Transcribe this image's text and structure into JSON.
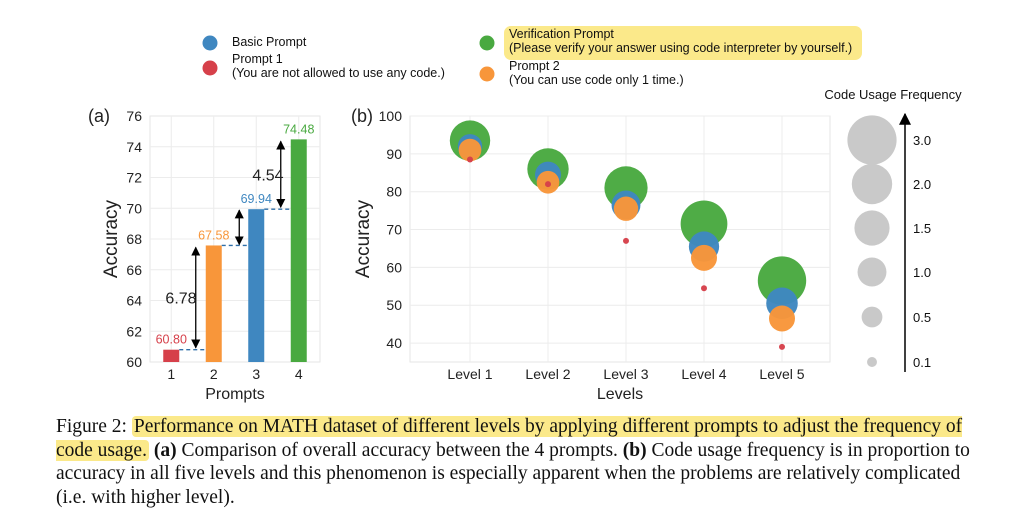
{
  "legend": {
    "items": [
      {
        "label": "Basic Prompt",
        "sub": "",
        "color": "#3f87c0"
      },
      {
        "label": "Prompt 1",
        "sub": "(You are not allowed to use any code.)",
        "color": "#d6404a"
      },
      {
        "label": "Verification Prompt",
        "sub": "(Please verify your answer using code interpreter by yourself.)",
        "color": "#49a940",
        "highlight": true
      },
      {
        "label": "Prompt 2",
        "sub": "(You can use code only 1 time.)",
        "color": "#f8963a"
      }
    ]
  },
  "colors": {
    "basic": "#3f87c0",
    "p1": "#d6404a",
    "verif": "#49a940",
    "p2": "#f8963a",
    "highlight": "#fbe98a",
    "size_legend": "#c9c9c9"
  },
  "chart_data": [
    {
      "panel": "(a)",
      "type": "bar",
      "categories": [
        "1",
        "2",
        "3",
        "4"
      ],
      "values": [
        60.8,
        67.58,
        69.94,
        74.48
      ],
      "value_labels": [
        "60.80",
        "67.58",
        "69.94",
        "74.48"
      ],
      "colors": [
        "#d6404a",
        "#f8963a",
        "#3f87c0",
        "#49a940"
      ],
      "xlabel": "Prompts",
      "ylabel": "Accuracy",
      "ylim": [
        60,
        76
      ],
      "yticks": [
        "60",
        "62",
        "64",
        "66",
        "68",
        "70",
        "72",
        "74",
        "76"
      ],
      "annotations": [
        {
          "text": "6.78",
          "from": 60.8,
          "to": 67.58
        },
        {
          "text": "4.54",
          "from": 69.94,
          "to": 74.48
        }
      ]
    },
    {
      "panel": "(b)",
      "type": "scatter",
      "categories": [
        "Level 1",
        "Level 2",
        "Level 3",
        "Level 4",
        "Level 5"
      ],
      "xlabel": "Levels",
      "ylabel": "Accuracy",
      "ylim": [
        35,
        100
      ],
      "yticks": [
        "40",
        "50",
        "60",
        "70",
        "80",
        "90",
        "100"
      ],
      "series": [
        {
          "key": "verif",
          "name": "Verification Prompt",
          "values": [
            93.5,
            86,
            81,
            71.5,
            56.5
          ],
          "freq": [
            2.0,
            2.1,
            2.3,
            2.7,
            2.9
          ]
        },
        {
          "key": "basic",
          "name": "Basic Prompt",
          "values": [
            92,
            84.5,
            76.5,
            65.5,
            50.5
          ],
          "freq": [
            0.7,
            0.8,
            1.0,
            1.1,
            1.2
          ]
        },
        {
          "key": "p2",
          "name": "Prompt 2",
          "values": [
            91,
            82.5,
            75.5,
            62.5,
            46.5
          ],
          "freq": [
            0.6,
            0.6,
            0.7,
            0.8,
            0.8
          ]
        },
        {
          "key": "p1",
          "name": "Prompt 1",
          "values": [
            88.5,
            82,
            67,
            54.5,
            39
          ],
          "freq": [
            0.0,
            0.0,
            0.0,
            0.0,
            0.03
          ]
        }
      ],
      "size_legend": {
        "title": "Code Usage Frequency",
        "values": [
          3.0,
          2.0,
          1.5,
          1.0,
          0.5,
          0.1
        ],
        "labels": [
          "3.0",
          "2.0",
          "1.5",
          "1.0",
          "0.5",
          "0.1"
        ]
      }
    }
  ],
  "caption": {
    "label": "Figure 2:",
    "highlighted": "Performance on MATH dataset of different levels by applying different prompts to adjust the frequency of code usage.",
    "a_tag": "(a)",
    "a_text": "Comparison of overall accuracy between the 4 prompts.",
    "b_tag": "(b)",
    "b_text": "Code usage frequency is in proportion to accuracy in all five levels and this phenomenon is especially apparent when the problems are relatively complicated  (i.e. with higher level)."
  }
}
